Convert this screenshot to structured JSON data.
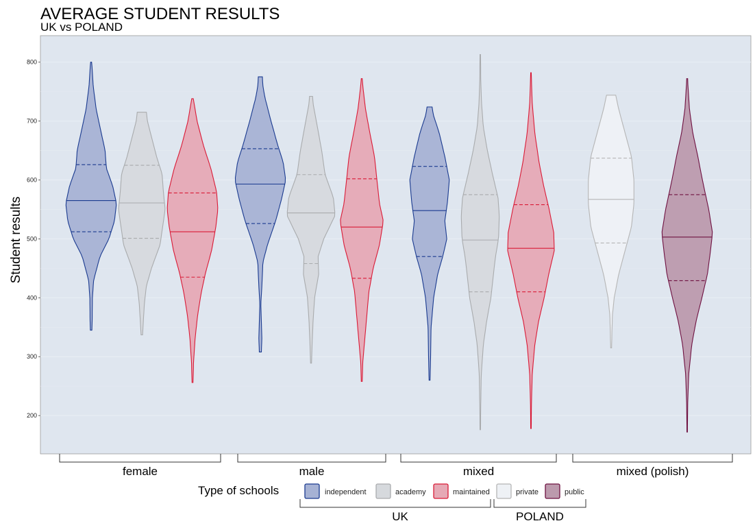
{
  "chart_data": {
    "type": "violin",
    "title": "AVERAGE STUDENT RESULTS",
    "subtitle": "UK vs POLAND",
    "ylabel": "Student results",
    "ylim": [
      135,
      845
    ],
    "yticks": [
      200,
      300,
      400,
      500,
      600,
      700,
      800
    ],
    "grid": true,
    "legend_title": "Type of schools",
    "legend_position": "bottom",
    "colors": {
      "independent": {
        "fill": "#a6b2d4",
        "stroke": "#1a3a8f"
      },
      "academy": {
        "fill": "#d6d9dd",
        "stroke": "#a9abad"
      },
      "maintained": {
        "fill": "#e6a9b5",
        "stroke": "#d91a36"
      },
      "private": {
        "fill": "#eef1f5",
        "stroke": "#b5b5b5"
      },
      "public": {
        "fill": "#bc9aad",
        "stroke": "#6e1040"
      }
    },
    "legend_items": [
      {
        "key": "independent",
        "label": "independent"
      },
      {
        "key": "academy",
        "label": "academy"
      },
      {
        "key": "maintained",
        "label": "maintained"
      },
      {
        "key": "private",
        "label": "private"
      },
      {
        "key": "public",
        "label": "public"
      }
    ],
    "legend_groups": [
      {
        "label": "UK",
        "keys": [
          "independent",
          "academy",
          "maintained"
        ]
      },
      {
        "label": "POLAND",
        "keys": [
          "private",
          "public"
        ]
      }
    ],
    "groups": [
      "female",
      "male",
      "mixed",
      "mixed (polish)"
    ],
    "violins": [
      {
        "group": "female",
        "type": "independent",
        "min": 345,
        "max": 800,
        "median": 565,
        "q1": 512,
        "q3": 626,
        "profile": [
          [
            345,
            0.03
          ],
          [
            360,
            0.04
          ],
          [
            400,
            0.05
          ],
          [
            430,
            0.1
          ],
          [
            470,
            0.35
          ],
          [
            500,
            0.7
          ],
          [
            530,
            0.92
          ],
          [
            560,
            1.0
          ],
          [
            590,
            0.85
          ],
          [
            620,
            0.6
          ],
          [
            650,
            0.55
          ],
          [
            680,
            0.4
          ],
          [
            720,
            0.2
          ],
          [
            760,
            0.08
          ],
          [
            790,
            0.04
          ],
          [
            800,
            0.02
          ]
        ]
      },
      {
        "group": "female",
        "type": "academy",
        "min": 337,
        "max": 715,
        "median": 561,
        "q1": 501,
        "q3": 625,
        "profile": [
          [
            337,
            0.03
          ],
          [
            360,
            0.06
          ],
          [
            390,
            0.1
          ],
          [
            420,
            0.18
          ],
          [
            450,
            0.38
          ],
          [
            490,
            0.72
          ],
          [
            520,
            0.82
          ],
          [
            550,
            0.92
          ],
          [
            580,
            0.85
          ],
          [
            610,
            0.8
          ],
          [
            640,
            0.58
          ],
          [
            670,
            0.4
          ],
          [
            700,
            0.22
          ],
          [
            715,
            0.18
          ]
        ]
      },
      {
        "group": "female",
        "type": "maintained",
        "min": 256,
        "max": 738,
        "median": 512,
        "q1": 435,
        "q3": 578,
        "profile": [
          [
            256,
            0.02
          ],
          [
            290,
            0.04
          ],
          [
            330,
            0.1
          ],
          [
            370,
            0.2
          ],
          [
            410,
            0.35
          ],
          [
            440,
            0.5
          ],
          [
            480,
            0.75
          ],
          [
            520,
            0.92
          ],
          [
            550,
            1.0
          ],
          [
            580,
            0.95
          ],
          [
            620,
            0.72
          ],
          [
            660,
            0.42
          ],
          [
            700,
            0.18
          ],
          [
            738,
            0.03
          ]
        ]
      },
      {
        "group": "male",
        "type": "independent",
        "min": 308,
        "max": 775,
        "median": 593,
        "q1": 526,
        "q3": 653,
        "profile": [
          [
            308,
            0.04
          ],
          [
            330,
            0.06
          ],
          [
            360,
            0.04
          ],
          [
            390,
            0.02
          ],
          [
            420,
            0.06
          ],
          [
            460,
            0.1
          ],
          [
            490,
            0.28
          ],
          [
            530,
            0.6
          ],
          [
            570,
            0.85
          ],
          [
            600,
            1.0
          ],
          [
            630,
            0.9
          ],
          [
            660,
            0.68
          ],
          [
            700,
            0.42
          ],
          [
            740,
            0.18
          ],
          [
            760,
            0.1
          ],
          [
            775,
            0.08
          ]
        ]
      },
      {
        "group": "male",
        "type": "academy",
        "min": 289,
        "max": 742,
        "median": 544,
        "q1": 458,
        "q3": 609,
        "profile": [
          [
            289,
            0.02
          ],
          [
            320,
            0.04
          ],
          [
            360,
            0.08
          ],
          [
            400,
            0.14
          ],
          [
            440,
            0.3
          ],
          [
            470,
            0.28
          ],
          [
            500,
            0.5
          ],
          [
            540,
            0.95
          ],
          [
            570,
            0.88
          ],
          [
            610,
            0.55
          ],
          [
            650,
            0.42
          ],
          [
            690,
            0.25
          ],
          [
            730,
            0.08
          ],
          [
            742,
            0.06
          ]
        ]
      },
      {
        "group": "male",
        "type": "maintained",
        "min": 258,
        "max": 772,
        "median": 520,
        "q1": 433,
        "q3": 602,
        "profile": [
          [
            258,
            0.02
          ],
          [
            290,
            0.04
          ],
          [
            330,
            0.12
          ],
          [
            370,
            0.2
          ],
          [
            410,
            0.28
          ],
          [
            450,
            0.45
          ],
          [
            490,
            0.7
          ],
          [
            530,
            0.85
          ],
          [
            560,
            0.7
          ],
          [
            600,
            0.6
          ],
          [
            640,
            0.5
          ],
          [
            680,
            0.32
          ],
          [
            720,
            0.15
          ],
          [
            760,
            0.04
          ],
          [
            772,
            0.02
          ]
        ]
      },
      {
        "group": "mixed",
        "type": "independent",
        "min": 260,
        "max": 724,
        "median": 548,
        "q1": 470,
        "q3": 623,
        "profile": [
          [
            260,
            0.02
          ],
          [
            300,
            0.04
          ],
          [
            350,
            0.06
          ],
          [
            400,
            0.16
          ],
          [
            440,
            0.32
          ],
          [
            470,
            0.52
          ],
          [
            500,
            0.68
          ],
          [
            530,
            0.6
          ],
          [
            560,
            0.7
          ],
          [
            600,
            0.78
          ],
          [
            640,
            0.6
          ],
          [
            680,
            0.38
          ],
          [
            710,
            0.15
          ],
          [
            724,
            0.1
          ]
        ]
      },
      {
        "group": "mixed",
        "type": "academy",
        "min": 176,
        "max": 813,
        "median": 498,
        "q1": 410,
        "q3": 575,
        "profile": [
          [
            176,
            0.01
          ],
          [
            220,
            0.02
          ],
          [
            270,
            0.04
          ],
          [
            320,
            0.12
          ],
          [
            360,
            0.25
          ],
          [
            400,
            0.42
          ],
          [
            440,
            0.52
          ],
          [
            470,
            0.6
          ],
          [
            500,
            0.72
          ],
          [
            540,
            0.75
          ],
          [
            570,
            0.7
          ],
          [
            610,
            0.48
          ],
          [
            650,
            0.28
          ],
          [
            690,
            0.12
          ],
          [
            730,
            0.05
          ],
          [
            770,
            0.02
          ],
          [
            813,
            0.01
          ]
        ]
      },
      {
        "group": "mixed",
        "type": "maintained",
        "min": 178,
        "max": 782,
        "median": 484,
        "q1": 410,
        "q3": 558,
        "profile": [
          [
            178,
            0.01
          ],
          [
            220,
            0.02
          ],
          [
            270,
            0.05
          ],
          [
            320,
            0.15
          ],
          [
            360,
            0.3
          ],
          [
            400,
            0.52
          ],
          [
            440,
            0.7
          ],
          [
            480,
            0.92
          ],
          [
            510,
            0.9
          ],
          [
            550,
            0.72
          ],
          [
            590,
            0.5
          ],
          [
            630,
            0.32
          ],
          [
            680,
            0.15
          ],
          [
            730,
            0.05
          ],
          [
            782,
            0.01
          ]
        ]
      },
      {
        "group": "mixed (polish)",
        "type": "private",
        "min": 315,
        "max": 744,
        "median": 567,
        "q1": 493,
        "q3": 637,
        "profile": [
          [
            315,
            0.02
          ],
          [
            340,
            0.03
          ],
          [
            370,
            0.05
          ],
          [
            400,
            0.12
          ],
          [
            440,
            0.3
          ],
          [
            480,
            0.55
          ],
          [
            520,
            0.8
          ],
          [
            560,
            0.9
          ],
          [
            600,
            0.9
          ],
          [
            640,
            0.8
          ],
          [
            680,
            0.55
          ],
          [
            720,
            0.3
          ],
          [
            744,
            0.18
          ]
        ]
      },
      {
        "group": "mixed (polish)",
        "type": "public",
        "min": 172,
        "max": 772,
        "median": 503,
        "q1": 429,
        "q3": 575,
        "profile": [
          [
            172,
            0.01
          ],
          [
            220,
            0.02
          ],
          [
            270,
            0.06
          ],
          [
            320,
            0.18
          ],
          [
            360,
            0.35
          ],
          [
            400,
            0.58
          ],
          [
            440,
            0.8
          ],
          [
            480,
            0.92
          ],
          [
            510,
            1.0
          ],
          [
            550,
            0.85
          ],
          [
            600,
            0.6
          ],
          [
            640,
            0.42
          ],
          [
            680,
            0.22
          ],
          [
            720,
            0.09
          ],
          [
            760,
            0.03
          ],
          [
            772,
            0.02
          ]
        ]
      }
    ]
  }
}
